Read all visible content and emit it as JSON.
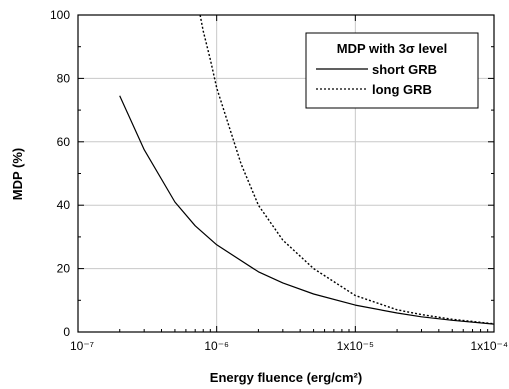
{
  "chart_data": {
    "type": "line",
    "xlabel": "Energy fluence (erg/cm²)",
    "ylabel": "MDP (%)",
    "xscale": "log",
    "xlim": [
      1e-07,
      0.0001
    ],
    "ylim": [
      0,
      100
    ],
    "grid": true,
    "x_tick_labels": [
      "10⁻⁷",
      "10⁻⁶",
      "1x10⁻⁵",
      "1x10⁻⁴"
    ],
    "y_tick_labels": [
      "0",
      "20",
      "40",
      "60",
      "80",
      "100"
    ],
    "legend": {
      "title": "MDP with 3σ level",
      "placement": "top-right",
      "entries": [
        "short GRB",
        "long GRB"
      ]
    },
    "series": [
      {
        "name": "short GRB",
        "style": "solid",
        "color": "#000000",
        "x": [
          2e-07,
          3e-07,
          5e-07,
          7e-07,
          1e-06,
          2e-06,
          3e-06,
          5e-06,
          1e-05,
          2e-05,
          3e-05,
          5e-05,
          0.0001
        ],
        "y": [
          74.5,
          57.5,
          41,
          33.5,
          27.5,
          19,
          15.5,
          12,
          8.5,
          6,
          4.8,
          3.7,
          2.5
        ]
      },
      {
        "name": "long GRB",
        "style": "dotted",
        "color": "#000000",
        "x": [
          7.6e-07,
          8e-07,
          9e-07,
          1e-06,
          1.5e-06,
          2e-06,
          3e-06,
          5e-06,
          1e-05,
          2e-05,
          3e-05,
          5e-05,
          0.0001
        ],
        "y": [
          100,
          95,
          86,
          77,
          53,
          40,
          29,
          20,
          11.5,
          7,
          5.5,
          4,
          2.6
        ]
      }
    ]
  }
}
